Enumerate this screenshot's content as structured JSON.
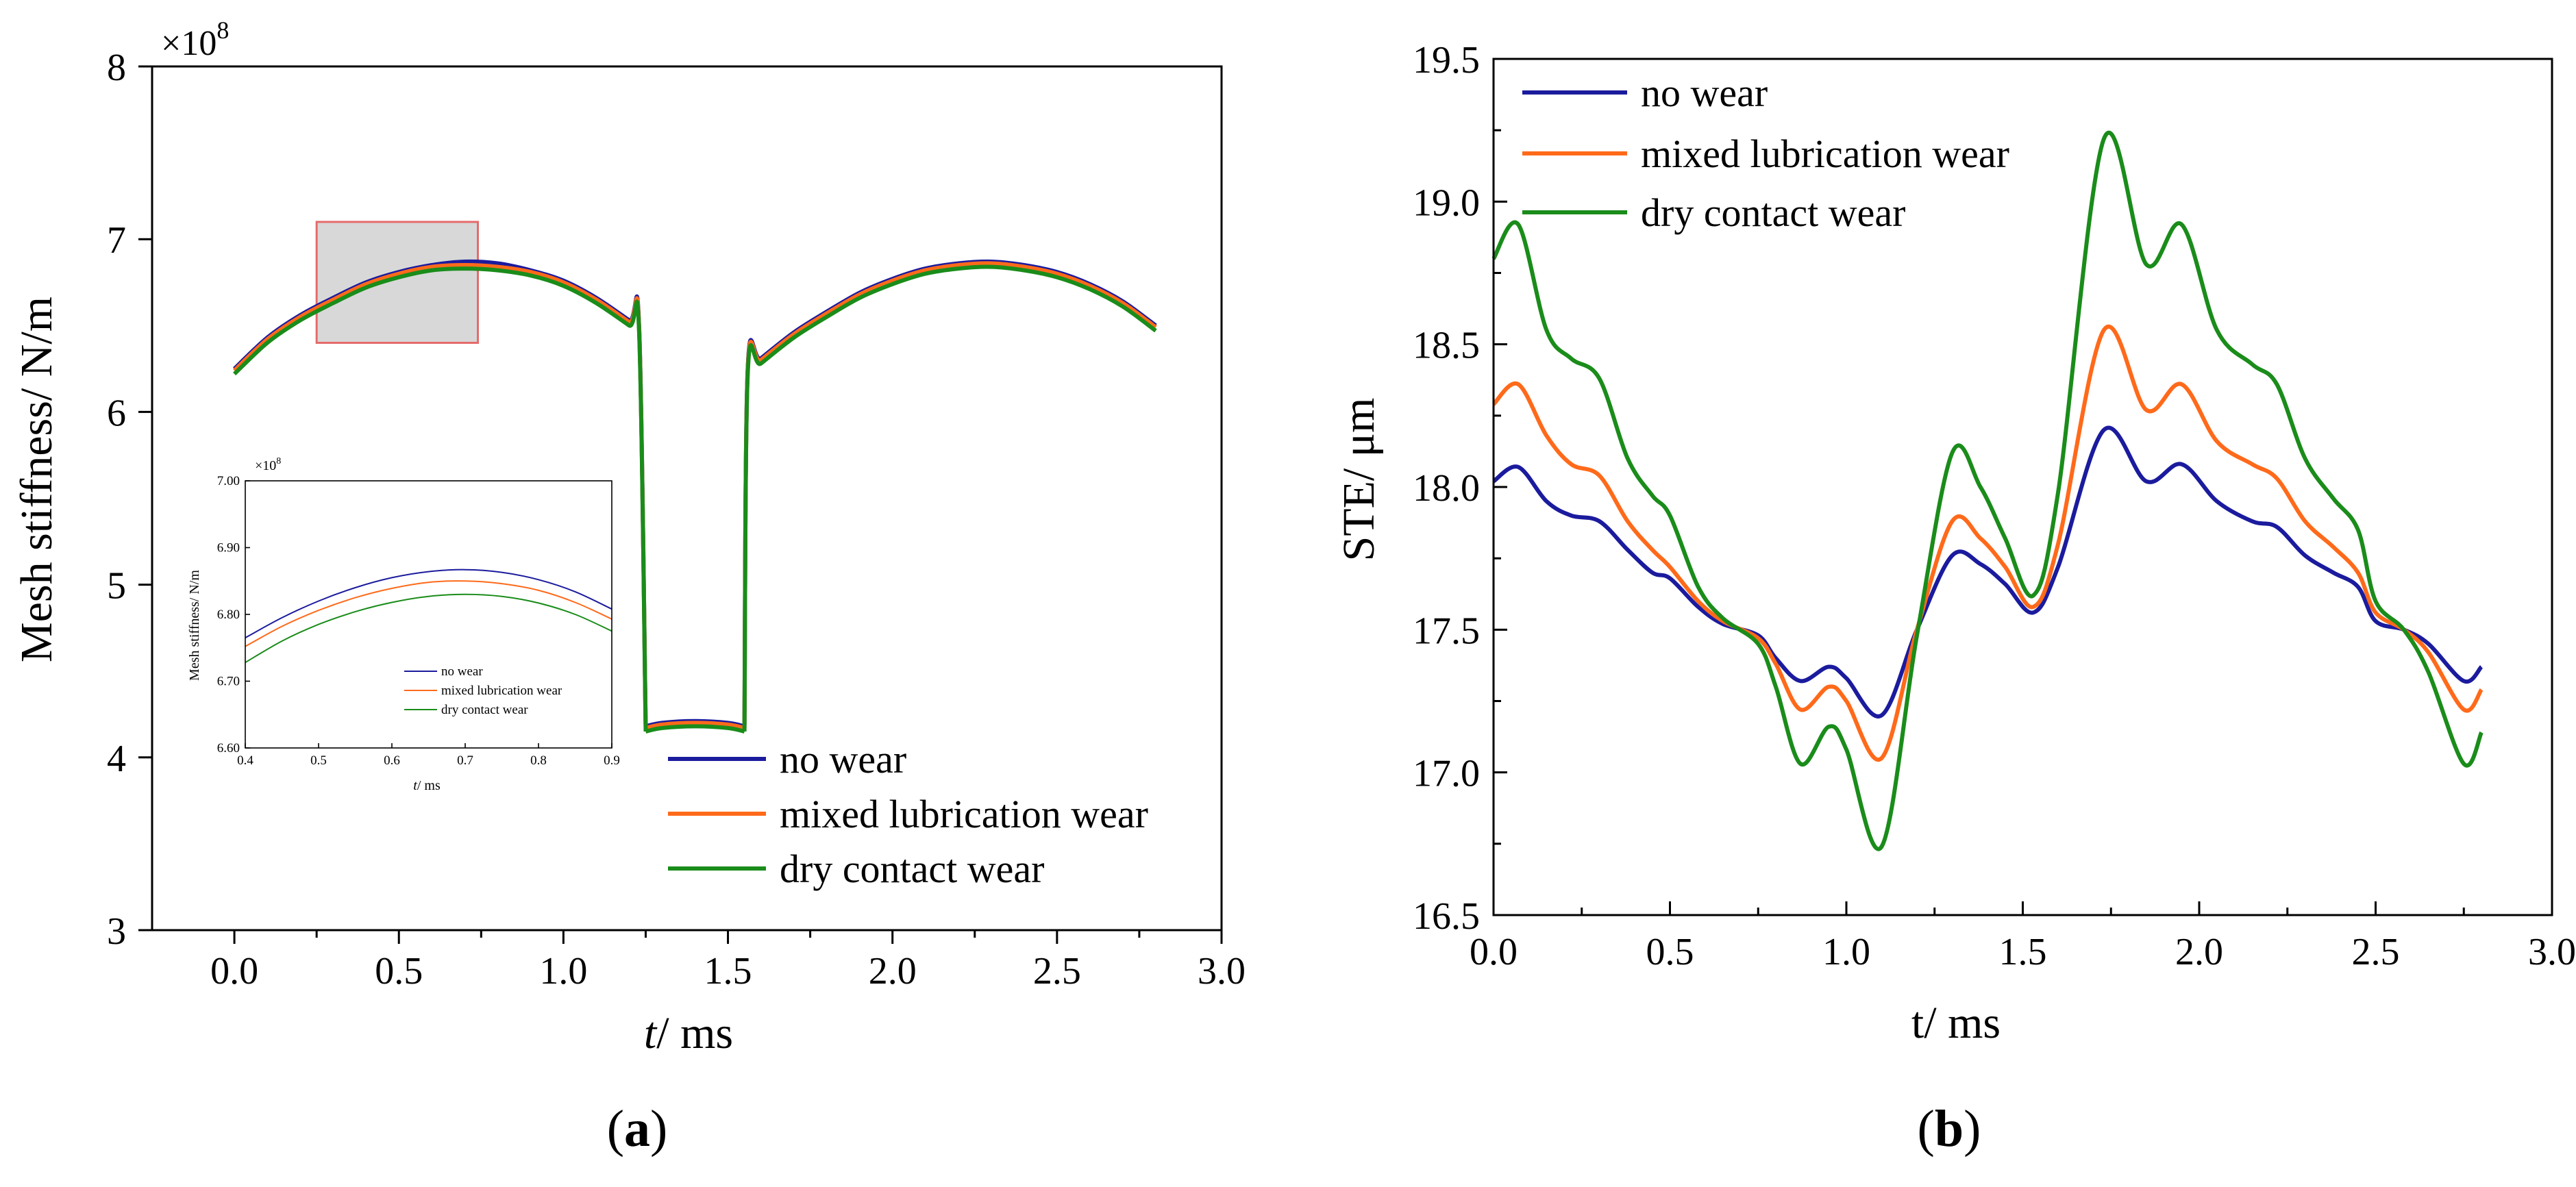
{
  "chart_data": [
    {
      "id": "a",
      "type": "line",
      "panel_label": "a",
      "xlabel_italic": "t",
      "xlabel_rest": "/ ms",
      "ylabel": "Mesh stiffness/ N/m",
      "y_exponent_label": "×10",
      "y_exponent_power": "8",
      "xlim": [
        -0.25,
        3.0
      ],
      "ylim": [
        3,
        8
      ],
      "xticks": [
        0.0,
        0.5,
        1.0,
        1.5,
        2.0,
        2.5,
        3.0
      ],
      "xtick_labels": [
        "0.0",
        "0.5",
        "1.0",
        "1.5",
        "2.0",
        "2.5",
        "3.0"
      ],
      "yticks": [
        3,
        4,
        5,
        6,
        7,
        8
      ],
      "ytick_labels": [
        "3",
        "4",
        "5",
        "6",
        "7",
        "8"
      ],
      "legend_position": "lower-right",
      "colors": {
        "no_wear": "#1b1b9e",
        "mixed": "#ff6a1a",
        "dry": "#1a8c1a",
        "zoom_box": "#e56b6b",
        "zoom_fill": "#d8d8d8"
      },
      "zoom_box": {
        "x0": 0.25,
        "x1": 0.74,
        "y0": 6.4,
        "y1": 7.1
      },
      "series": [
        {
          "name": "no wear",
          "key": "no_wear",
          "segments": [
            {
              "x": [
                0.0,
                0.1,
                0.2,
                0.3,
                0.4,
                0.5,
                0.6,
                0.7,
                0.8,
                0.9,
                1.0,
                1.1,
                1.2,
                1.23,
                1.25
              ],
              "y": [
                6.25,
                6.43,
                6.56,
                6.66,
                6.75,
                6.81,
                6.85,
                6.87,
                6.86,
                6.82,
                6.76,
                6.66,
                6.53,
                6.49,
                4.18
              ]
            },
            {
              "x": [
                1.25,
                1.3,
                1.4,
                1.5,
                1.55
              ],
              "y": [
                4.18,
                4.2,
                4.21,
                4.2,
                4.18
              ]
            },
            {
              "x": [
                1.55,
                1.56,
                1.6,
                1.7,
                1.8,
                1.9,
                2.0,
                2.1,
                2.2,
                2.3,
                2.4,
                2.5,
                2.6,
                2.7,
                2.8
              ],
              "y": [
                4.18,
                6.25,
                6.31,
                6.46,
                6.58,
                6.69,
                6.77,
                6.83,
                6.86,
                6.87,
                6.85,
                6.81,
                6.74,
                6.64,
                6.5
              ]
            }
          ]
        },
        {
          "name": "mixed lubrication wear",
          "key": "mixed",
          "segments": [
            {
              "x": [
                0.0,
                0.1,
                0.2,
                0.3,
                0.4,
                0.5,
                0.6,
                0.7,
                0.8,
                0.9,
                1.0,
                1.1,
                1.2,
                1.23,
                1.25
              ],
              "y": [
                6.24,
                6.42,
                6.55,
                6.65,
                6.74,
                6.8,
                6.84,
                6.85,
                6.84,
                6.81,
                6.75,
                6.65,
                6.52,
                6.48,
                4.17
              ]
            },
            {
              "x": [
                1.25,
                1.3,
                1.4,
                1.5,
                1.55
              ],
              "y": [
                4.17,
                4.19,
                4.2,
                4.19,
                4.17
              ]
            },
            {
              "x": [
                1.55,
                1.56,
                1.6,
                1.7,
                1.8,
                1.9,
                2.0,
                2.1,
                2.2,
                2.3,
                2.4,
                2.5,
                2.6,
                2.7,
                2.8
              ],
              "y": [
                4.17,
                6.24,
                6.3,
                6.45,
                6.57,
                6.68,
                6.76,
                6.82,
                6.85,
                6.86,
                6.84,
                6.8,
                6.73,
                6.63,
                6.49
              ]
            }
          ]
        },
        {
          "name": "dry contact wear",
          "key": "dry",
          "segments": [
            {
              "x": [
                0.0,
                0.1,
                0.2,
                0.3,
                0.4,
                0.5,
                0.6,
                0.7,
                0.8,
                0.9,
                1.0,
                1.1,
                1.2,
                1.23,
                1.25
              ],
              "y": [
                6.22,
                6.4,
                6.53,
                6.63,
                6.72,
                6.78,
                6.82,
                6.83,
                6.82,
                6.79,
                6.73,
                6.63,
                6.5,
                6.46,
                4.15
              ]
            },
            {
              "x": [
                1.25,
                1.3,
                1.4,
                1.5,
                1.55
              ],
              "y": [
                4.15,
                4.17,
                4.18,
                4.17,
                4.15
              ]
            },
            {
              "x": [
                1.55,
                1.56,
                1.6,
                1.7,
                1.8,
                1.9,
                2.0,
                2.1,
                2.2,
                2.3,
                2.4,
                2.5,
                2.6,
                2.7,
                2.8
              ],
              "y": [
                4.15,
                6.22,
                6.28,
                6.43,
                6.55,
                6.66,
                6.74,
                6.8,
                6.83,
                6.84,
                6.82,
                6.78,
                6.71,
                6.61,
                6.47
              ]
            }
          ]
        }
      ],
      "inset": {
        "ylabel": "Mesh stiffness/ N/m",
        "xlabel_italic": "t",
        "xlabel_rest": "/ ms",
        "y_exponent_label": "×10",
        "y_exponent_power": "8",
        "xlim": [
          0.4,
          0.9
        ],
        "ylim": [
          6.6,
          7.0
        ],
        "xticks": [
          0.4,
          0.5,
          0.6,
          0.7,
          0.8,
          0.9
        ],
        "xtick_labels": [
          "0.4",
          "0.5",
          "0.6",
          "0.7",
          "0.8",
          "0.9"
        ],
        "yticks": [
          6.6,
          6.7,
          6.8,
          6.9,
          7.0
        ],
        "ytick_labels": [
          "6.60",
          "6.70",
          "6.80",
          "6.90",
          "7.00"
        ],
        "legend_position": "bottom-center",
        "series": [
          {
            "name": "no wear",
            "key": "no_wear",
            "x": [
              0.4,
              0.45,
              0.5,
              0.55,
              0.6,
              0.65,
              0.7,
              0.75,
              0.8,
              0.85,
              0.9
            ],
            "y": [
              6.765,
              6.795,
              6.82,
              6.84,
              6.855,
              6.864,
              6.867,
              6.863,
              6.852,
              6.834,
              6.808
            ]
          },
          {
            "name": "mixed lubrication wear",
            "key": "mixed",
            "x": [
              0.4,
              0.45,
              0.5,
              0.55,
              0.6,
              0.65,
              0.7,
              0.75,
              0.8,
              0.85,
              0.9
            ],
            "y": [
              6.752,
              6.782,
              6.806,
              6.825,
              6.839,
              6.848,
              6.85,
              6.846,
              6.836,
              6.818,
              6.793
            ]
          },
          {
            "name": "dry contact wear",
            "key": "dry",
            "x": [
              0.4,
              0.45,
              0.5,
              0.55,
              0.6,
              0.65,
              0.7,
              0.75,
              0.8,
              0.85,
              0.9
            ],
            "y": [
              6.728,
              6.76,
              6.785,
              6.804,
              6.818,
              6.827,
              6.83,
              6.827,
              6.817,
              6.8,
              6.775
            ]
          }
        ]
      }
    },
    {
      "id": "b",
      "type": "line",
      "panel_label": "b",
      "xlabel": "t/ ms",
      "ylabel": "STE/ μm",
      "xlim": [
        0.0,
        3.0
      ],
      "ylim": [
        16.5,
        19.5
      ],
      "xticks": [
        0.0,
        0.5,
        1.0,
        1.5,
        2.0,
        2.5,
        3.0
      ],
      "xtick_labels": [
        "0.0",
        "0.5",
        "1.0",
        "1.5",
        "2.0",
        "2.5",
        "3.0"
      ],
      "yticks": [
        16.5,
        17.0,
        17.5,
        18.0,
        18.5,
        19.0,
        19.5
      ],
      "ytick_labels": [
        "16.5",
        "17.0",
        "17.5",
        "18.0",
        "18.5",
        "19.0",
        "19.5"
      ],
      "legend_position": "top-left",
      "series": [
        {
          "name": "no wear",
          "key": "no_wear",
          "x": [
            0.0,
            0.07,
            0.15,
            0.22,
            0.3,
            0.38,
            0.45,
            0.5,
            0.58,
            0.65,
            0.75,
            0.8,
            0.87,
            0.95,
            1.0,
            1.1,
            1.2,
            1.3,
            1.38,
            1.45,
            1.53,
            1.6,
            1.73,
            1.85,
            1.95,
            2.05,
            2.15,
            2.22,
            2.3,
            2.38,
            2.45,
            2.5,
            2.58,
            2.65,
            2.75,
            2.8
          ],
          "y": [
            18.02,
            18.07,
            17.95,
            17.9,
            17.88,
            17.78,
            17.7,
            17.68,
            17.58,
            17.52,
            17.48,
            17.4,
            17.32,
            17.37,
            17.33,
            17.2,
            17.5,
            17.76,
            17.73,
            17.66,
            17.56,
            17.72,
            18.2,
            18.02,
            18.08,
            17.95,
            17.88,
            17.86,
            17.76,
            17.7,
            17.65,
            17.53,
            17.5,
            17.45,
            17.32,
            17.37
          ]
        },
        {
          "name": "mixed lubrication wear",
          "key": "mixed",
          "x": [
            0.0,
            0.07,
            0.15,
            0.22,
            0.3,
            0.38,
            0.45,
            0.5,
            0.58,
            0.65,
            0.75,
            0.8,
            0.87,
            0.95,
            1.0,
            1.1,
            1.2,
            1.3,
            1.38,
            1.45,
            1.53,
            1.6,
            1.73,
            1.85,
            1.95,
            2.05,
            2.15,
            2.22,
            2.3,
            2.38,
            2.45,
            2.5,
            2.58,
            2.65,
            2.75,
            2.8
          ],
          "y": [
            18.29,
            18.36,
            18.18,
            18.08,
            18.04,
            17.88,
            17.78,
            17.72,
            17.6,
            17.53,
            17.47,
            17.38,
            17.22,
            17.3,
            17.25,
            17.05,
            17.5,
            17.88,
            17.82,
            17.72,
            17.58,
            17.8,
            18.55,
            18.27,
            18.36,
            18.16,
            18.08,
            18.03,
            17.88,
            17.79,
            17.7,
            17.56,
            17.5,
            17.42,
            17.22,
            17.29
          ]
        },
        {
          "name": "dry contact wear",
          "key": "dry",
          "x": [
            0.0,
            0.07,
            0.15,
            0.22,
            0.3,
            0.38,
            0.45,
            0.5,
            0.58,
            0.65,
            0.75,
            0.8,
            0.87,
            0.95,
            1.0,
            1.1,
            1.2,
            1.3,
            1.38,
            1.45,
            1.53,
            1.6,
            1.73,
            1.85,
            1.95,
            2.05,
            2.15,
            2.22,
            2.3,
            2.38,
            2.45,
            2.5,
            2.58,
            2.65,
            2.75,
            2.8
          ],
          "y": [
            18.8,
            18.92,
            18.55,
            18.45,
            18.38,
            18.1,
            17.97,
            17.9,
            17.65,
            17.54,
            17.45,
            17.3,
            17.03,
            17.16,
            17.08,
            16.74,
            17.48,
            18.12,
            18.0,
            17.82,
            17.62,
            17.98,
            19.22,
            18.78,
            18.92,
            18.55,
            18.43,
            18.36,
            18.1,
            17.96,
            17.85,
            17.6,
            17.5,
            17.35,
            17.03,
            17.14
          ]
        }
      ]
    }
  ]
}
